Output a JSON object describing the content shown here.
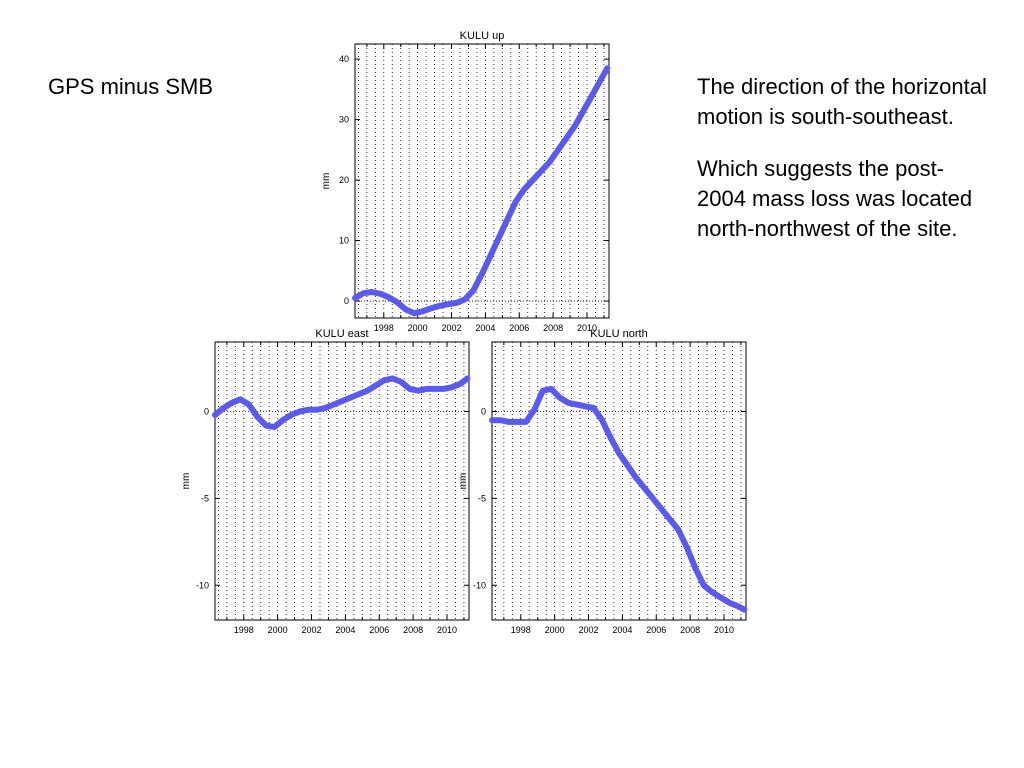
{
  "title": "GPS minus SMB",
  "notes": [
    "The direction of the horizontal motion is south-southeast.",
    "Which suggests the post-2004 mass loss was located north-northwest of the site."
  ],
  "colors": {
    "series": "#5a5af0",
    "axis": "#000000",
    "grid": "#000000"
  },
  "chart_data": [
    {
      "type": "line",
      "title": "KULU up",
      "ylabel": "mm",
      "xlabel": "",
      "xlim": [
        1996.3,
        2011.3
      ],
      "ylim": [
        -2.8,
        42.5
      ],
      "x_ticks": [
        1998,
        2000,
        2002,
        2004,
        2006,
        2008,
        2010
      ],
      "y_ticks": [
        0,
        10,
        20,
        30,
        40
      ],
      "grid": true,
      "zero_line": true,
      "series": [
        {
          "x": [
            1996.3,
            1996.8,
            1997.3,
            1997.8,
            1998.3,
            1998.8,
            1999.3,
            1999.8,
            2000.3,
            2000.8,
            2001.3,
            2001.8,
            2002.3,
            2002.8,
            2003.3,
            2003.8,
            2004.3,
            2004.8,
            2005.3,
            2005.8,
            2006.3,
            2006.8,
            2007.3,
            2007.8,
            2008.3,
            2008.8,
            2009.3,
            2009.8,
            2010.3,
            2010.8,
            2011.2
          ],
          "y": [
            0.5,
            1.3,
            1.5,
            1.2,
            0.6,
            -0.2,
            -1.4,
            -2.0,
            -1.7,
            -1.2,
            -0.8,
            -0.5,
            -0.3,
            0.3,
            1.8,
            4.5,
            7.5,
            10.5,
            13.5,
            16.5,
            18.5,
            20.0,
            21.5,
            23.0,
            25.0,
            27.0,
            29.0,
            31.5,
            34.0,
            36.5,
            38.5
          ]
        }
      ]
    },
    {
      "type": "line",
      "title": "KULU east",
      "ylabel": "mm",
      "xlabel": "",
      "xlim": [
        1996.3,
        2011.3
      ],
      "ylim": [
        -12.0,
        4.0
      ],
      "x_ticks": [
        1998,
        2000,
        2002,
        2004,
        2006,
        2008,
        2010
      ],
      "y_ticks": [
        0,
        -5,
        -10
      ],
      "grid": true,
      "zero_line": true,
      "series": [
        {
          "x": [
            1996.3,
            1996.8,
            1997.3,
            1997.8,
            1998.3,
            1998.8,
            1999.3,
            1999.8,
            2000.3,
            2000.8,
            2001.3,
            2001.8,
            2002.3,
            2002.8,
            2003.3,
            2003.8,
            2004.3,
            2004.8,
            2005.3,
            2005.8,
            2006.3,
            2006.8,
            2007.3,
            2007.8,
            2008.3,
            2008.8,
            2009.3,
            2009.8,
            2010.3,
            2010.8,
            2011.2
          ],
          "y": [
            -0.2,
            0.2,
            0.5,
            0.7,
            0.4,
            -0.3,
            -0.8,
            -0.9,
            -0.5,
            -0.2,
            0.0,
            0.1,
            0.1,
            0.2,
            0.4,
            0.6,
            0.8,
            1.0,
            1.2,
            1.5,
            1.8,
            1.9,
            1.7,
            1.3,
            1.2,
            1.3,
            1.3,
            1.3,
            1.4,
            1.6,
            1.9
          ]
        }
      ]
    },
    {
      "type": "line",
      "title": "KULU north",
      "ylabel": "mm",
      "xlabel": "",
      "xlim": [
        1996.3,
        2011.3
      ],
      "ylim": [
        -12.0,
        4.0
      ],
      "x_ticks": [
        1998,
        2000,
        2002,
        2004,
        2006,
        2008,
        2010
      ],
      "y_ticks": [
        0,
        -5,
        -10
      ],
      "grid": true,
      "zero_line": true,
      "series": [
        {
          "x": [
            1996.3,
            1996.8,
            1997.3,
            1997.8,
            1998.3,
            1998.8,
            1999.3,
            1999.8,
            2000.3,
            2000.8,
            2001.3,
            2001.8,
            2002.3,
            2002.8,
            2003.3,
            2003.8,
            2004.3,
            2004.8,
            2005.3,
            2005.8,
            2006.3,
            2006.8,
            2007.3,
            2007.8,
            2008.3,
            2008.8,
            2009.3,
            2009.8,
            2010.3,
            2010.8,
            2011.2
          ],
          "y": [
            -0.5,
            -0.5,
            -0.6,
            -0.6,
            -0.6,
            0.1,
            1.2,
            1.3,
            0.8,
            0.5,
            0.4,
            0.3,
            0.2,
            -0.5,
            -1.5,
            -2.4,
            -3.1,
            -3.8,
            -4.4,
            -5.0,
            -5.6,
            -6.2,
            -6.8,
            -7.8,
            -9.0,
            -10.0,
            -10.4,
            -10.7,
            -11.0,
            -11.2,
            -11.4
          ]
        }
      ]
    }
  ]
}
